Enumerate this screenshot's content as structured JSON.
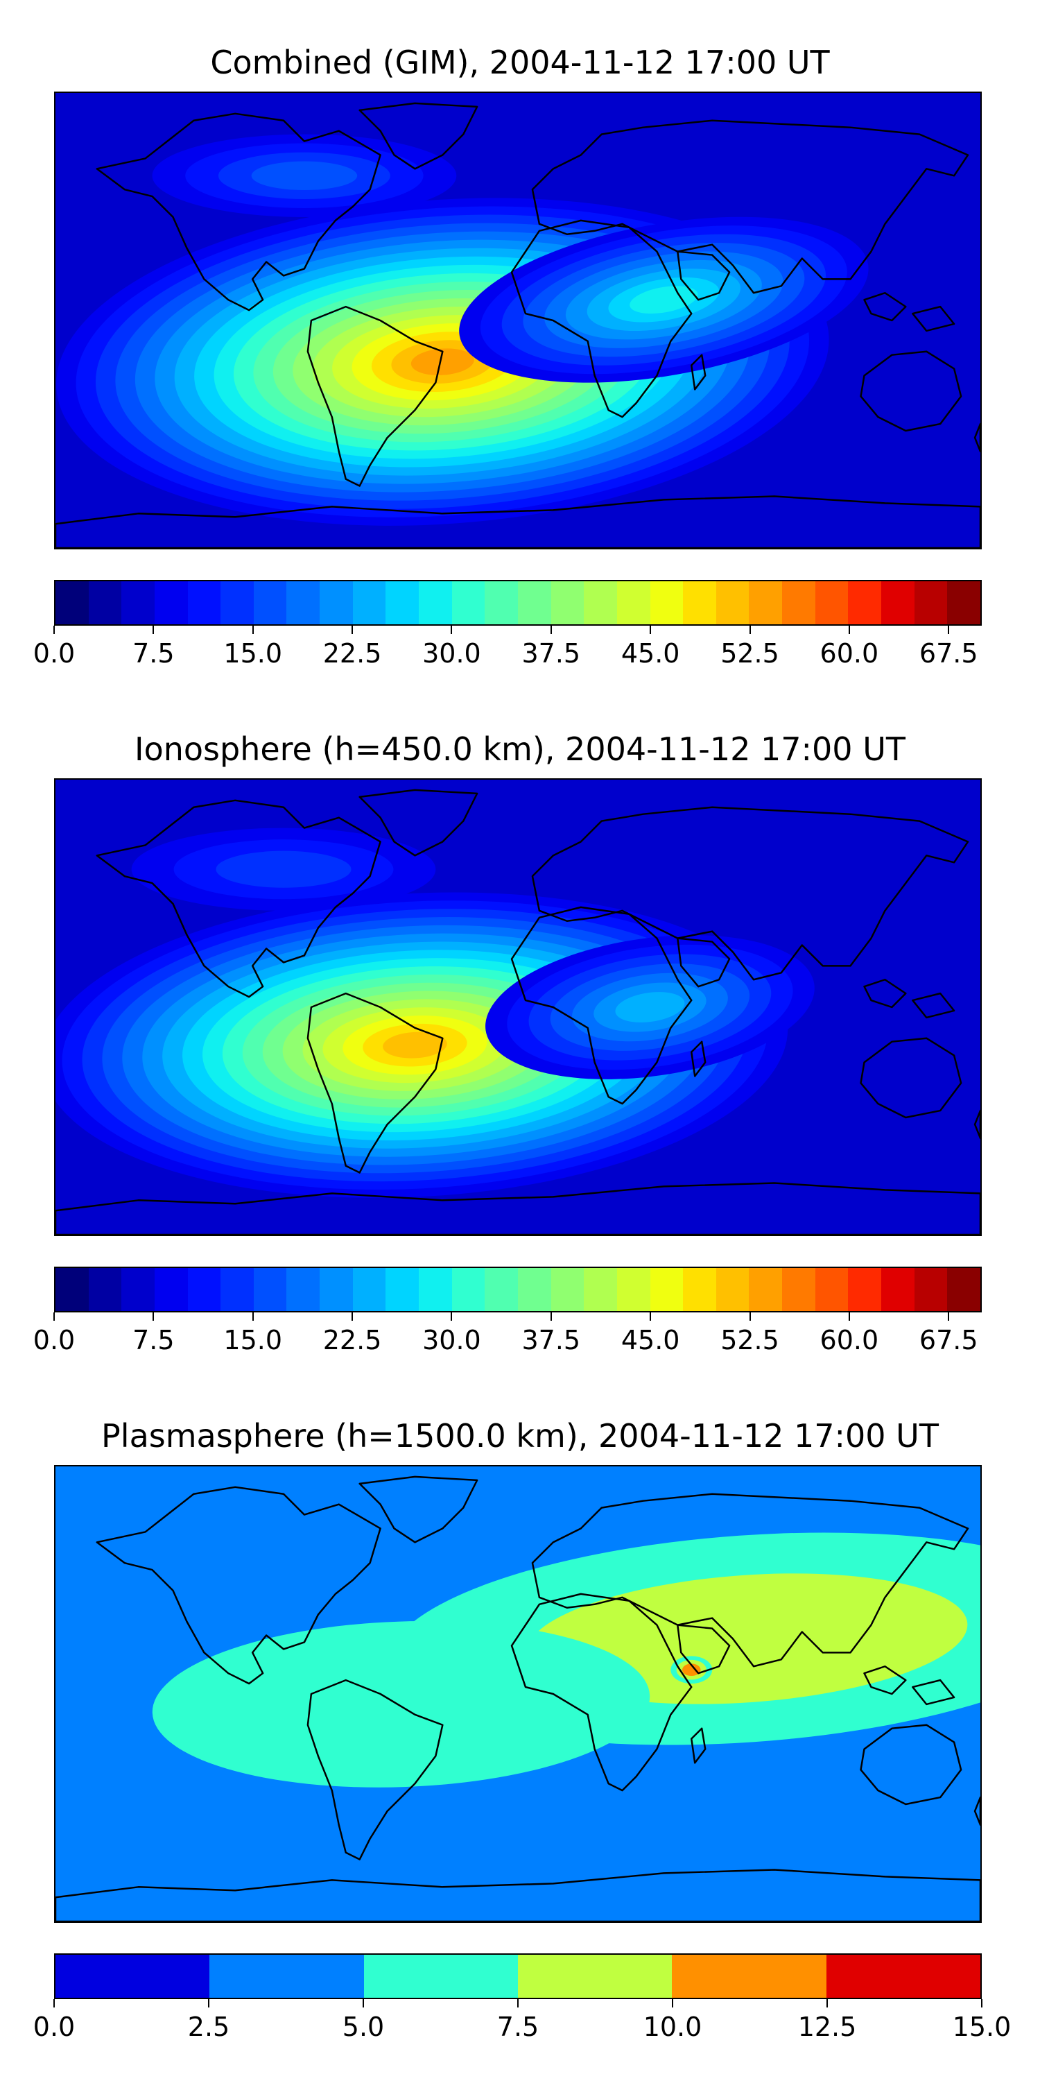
{
  "figure": {
    "panels": [
      {
        "title": "Combined (GIM), 2004-11-12 17:00 UT",
        "colorbar": {
          "min": 0.0,
          "max": 70.0,
          "levels": 28,
          "tick_labels": [
            "0.0",
            "7.5",
            "15.0",
            "22.5",
            "30.0",
            "37.5",
            "45.0",
            "52.5",
            "60.0",
            "67.5"
          ],
          "tick_values": [
            0.0,
            7.5,
            15.0,
            22.5,
            30.0,
            37.5,
            45.0,
            52.5,
            60.0,
            67.5
          ],
          "colors": [
            "#00007a",
            "#0000a3",
            "#0000cc",
            "#0000f0",
            "#0010ff",
            "#0030ff",
            "#0050ff",
            "#0070ff",
            "#0090ff",
            "#00b0ff",
            "#00d4ff",
            "#10f0f0",
            "#30ffd0",
            "#50ffb0",
            "#70ff90",
            "#90ff70",
            "#b0ff50",
            "#d0ff30",
            "#f0ff10",
            "#ffe000",
            "#ffc000",
            "#ffa000",
            "#ff7a00",
            "#ff5500",
            "#ff2a00",
            "#e00000",
            "#b80000",
            "#8a0000"
          ]
        },
        "field": {
          "background_level": 2,
          "blobs": [
            {
              "name": "south-america-africa-peak",
              "max_level": 21
            },
            {
              "name": "indian-ocean-tongue",
              "max_level": 11
            },
            {
              "name": "pacific-low",
              "max_level": 6
            }
          ]
        }
      },
      {
        "title": "Ionosphere  (h=450.0 km), 2004-11-12 17:00 UT",
        "colorbar": {
          "min": 0.0,
          "max": 70.0,
          "levels": 28,
          "tick_labels": [
            "0.0",
            "7.5",
            "15.0",
            "22.5",
            "30.0",
            "37.5",
            "45.0",
            "52.5",
            "60.0",
            "67.5"
          ],
          "tick_values": [
            0.0,
            7.5,
            15.0,
            22.5,
            30.0,
            37.5,
            45.0,
            52.5,
            60.0,
            67.5
          ],
          "colors": [
            "#00007a",
            "#0000a3",
            "#0000cc",
            "#0000f0",
            "#0010ff",
            "#0030ff",
            "#0050ff",
            "#0070ff",
            "#0090ff",
            "#00b0ff",
            "#00d4ff",
            "#10f0f0",
            "#30ffd0",
            "#50ffb0",
            "#70ff90",
            "#90ff70",
            "#b0ff50",
            "#d0ff30",
            "#f0ff10",
            "#ffe000",
            "#ffc000",
            "#ffa000",
            "#ff7a00",
            "#ff5500",
            "#ff2a00",
            "#e00000",
            "#b80000",
            "#8a0000"
          ]
        },
        "field": {
          "background_level": 2,
          "blobs": [
            {
              "name": "south-america-africa-peak",
              "max_level": 20
            },
            {
              "name": "indian-ocean-tongue",
              "max_level": 9
            },
            {
              "name": "pacific-low",
              "max_level": 5
            }
          ]
        }
      },
      {
        "title": "Plasmasphere (h=1500.0 km), 2004-11-12 17:00 UT",
        "colorbar": {
          "min": 0.0,
          "max": 15.0,
          "levels": 6,
          "tick_labels": [
            "0.0",
            "2.5",
            "5.0",
            "7.5",
            "10.0",
            "12.5",
            "15.0"
          ],
          "tick_values": [
            0.0,
            2.5,
            5.0,
            7.5,
            10.0,
            12.5,
            15.0
          ],
          "colors": [
            "#0000e0",
            "#0080ff",
            "#30ffd0",
            "#c0ff40",
            "#ff9000",
            "#e00000"
          ]
        },
        "field": {
          "background_level": 1,
          "blobs": [
            {
              "name": "asia-africa-band",
              "max_level": 3
            },
            {
              "name": "atlantic-band",
              "max_level": 2
            },
            {
              "name": "arabian-sea-peak",
              "max_level": 4
            }
          ]
        }
      }
    ]
  }
}
